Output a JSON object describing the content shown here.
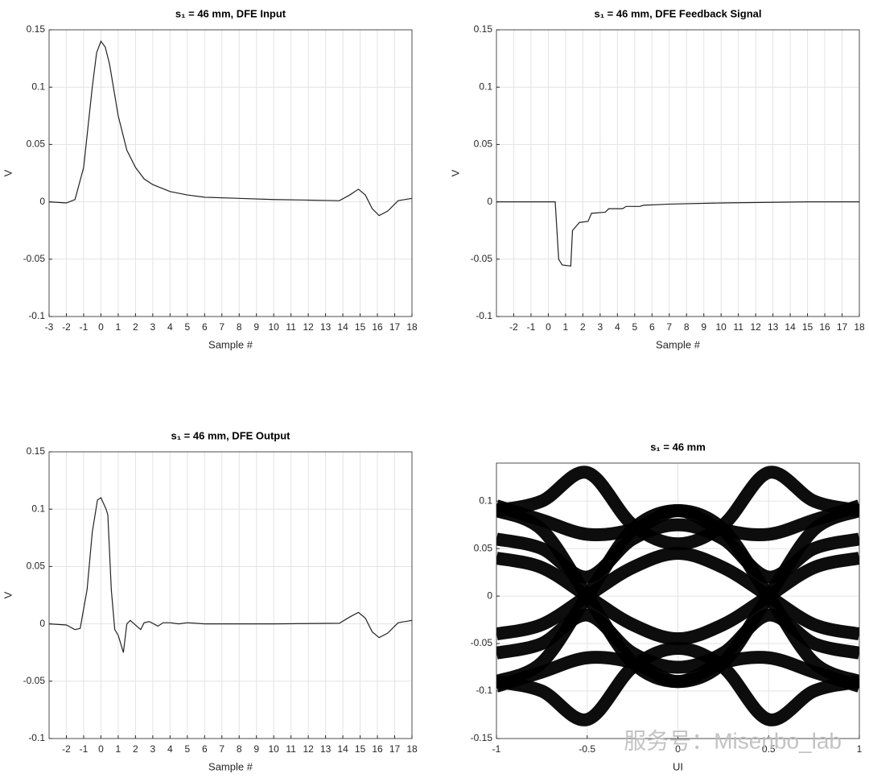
{
  "chart_data": [
    {
      "type": "line",
      "title": "s₁ = 46 mm, DFE Input",
      "xlabel": "Sample #",
      "ylabel": "V",
      "x": [
        -3,
        -2,
        -1.5,
        -1,
        -0.5,
        -0.25,
        0,
        0.25,
        0.5,
        1,
        1.5,
        2,
        2.5,
        3,
        4,
        5,
        6,
        8,
        10,
        12,
        13.8,
        14.4,
        14.9,
        15.3,
        15.7,
        16.1,
        16.6,
        17.2,
        18
      ],
      "series": [
        {
          "color": "#222222",
          "values": [
            0,
            -0.001,
            0.002,
            0.03,
            0.1,
            0.13,
            0.14,
            0.135,
            0.12,
            0.075,
            0.045,
            0.03,
            0.02,
            0.015,
            0.009,
            0.006,
            0.004,
            0.003,
            0.002,
            0.0015,
            0.001,
            0.006,
            0.011,
            0.006,
            -0.006,
            -0.012,
            -0.008,
            0.001,
            0.003
          ]
        }
      ],
      "xlim": [
        -3,
        18
      ],
      "xticks": [
        -3,
        -2,
        -1,
        0,
        1,
        2,
        3,
        4,
        5,
        6,
        7,
        8,
        9,
        10,
        11,
        12,
        13,
        14,
        15,
        16,
        17,
        18
      ],
      "ylim": [
        -0.1,
        0.15
      ],
      "yticks": [
        -0.1,
        -0.05,
        0,
        0.05,
        0.1,
        0.15
      ],
      "grid": true
    },
    {
      "type": "line",
      "title": "s₁ = 46 mm, DFE Feedback Signal",
      "xlabel": "Sample #",
      "ylabel": "V",
      "x": [
        -3,
        0.4,
        0.6,
        0.8,
        1.3,
        1.4,
        1.8,
        2.3,
        2.5,
        3.3,
        3.5,
        4.3,
        4.5,
        5.3,
        5.5,
        7,
        10,
        15,
        18
      ],
      "series": [
        {
          "color": "#222222",
          "values": [
            0,
            0,
            -0.05,
            -0.055,
            -0.056,
            -0.025,
            -0.018,
            -0.017,
            -0.01,
            -0.009,
            -0.006,
            -0.006,
            -0.004,
            -0.004,
            -0.003,
            -0.002,
            -0.001,
            0,
            0
          ]
        }
      ],
      "xlim": [
        -3,
        18
      ],
      "xticks": [
        -2,
        -1,
        0,
        1,
        2,
        3,
        4,
        5,
        6,
        7,
        8,
        9,
        10,
        11,
        12,
        13,
        14,
        15,
        16,
        17,
        18
      ],
      "ylim": [
        -0.1,
        0.15
      ],
      "yticks": [
        -0.1,
        -0.05,
        0,
        0.05,
        0.1,
        0.15
      ],
      "grid": true
    },
    {
      "type": "line",
      "title": "s₁ = 46 mm, DFE Output",
      "xlabel": "Sample #",
      "ylabel": "V",
      "x": [
        -3,
        -2,
        -1.5,
        -1.2,
        -0.8,
        -0.5,
        -0.2,
        0,
        0.3,
        0.4,
        0.6,
        0.8,
        1,
        1.3,
        1.5,
        1.7,
        2,
        2.3,
        2.5,
        2.8,
        3.3,
        3.6,
        4,
        4.5,
        5,
        6,
        8,
        10,
        13.8,
        14.4,
        14.9,
        15.3,
        15.7,
        16.1,
        16.6,
        17.2,
        18
      ],
      "series": [
        {
          "color": "#222222",
          "values": [
            0,
            -0.001,
            -0.005,
            -0.004,
            0.03,
            0.08,
            0.108,
            0.11,
            0.1,
            0.095,
            0.03,
            -0.005,
            -0.01,
            -0.025,
            0,
            0.003,
            -0.001,
            -0.005,
            0.001,
            0.002,
            -0.002,
            0.001,
            0.001,
            0,
            0.001,
            0,
            0,
            0,
            0.0005,
            0.006,
            0.01,
            0.005,
            -0.007,
            -0.012,
            -0.008,
            0.001,
            0.003
          ]
        }
      ],
      "xlim": [
        -3,
        18
      ],
      "xticks": [
        -2,
        -1,
        0,
        1,
        2,
        3,
        4,
        5,
        6,
        7,
        8,
        9,
        10,
        11,
        12,
        13,
        14,
        15,
        16,
        17,
        18
      ],
      "ylim": [
        -0.1,
        0.15
      ],
      "yticks": [
        -0.1,
        -0.05,
        0,
        0.05,
        0.1,
        0.15
      ],
      "grid": true
    },
    {
      "type": "eye",
      "title": "s₁ = 46 mm",
      "xlabel": "UI",
      "x": [
        -1,
        -0.75,
        -0.5,
        -0.25,
        0,
        0.25,
        0.5,
        0.75,
        1
      ],
      "series": [
        {
          "color": "#000000",
          "values": [
            0.095,
            0.08,
            0.065,
            0.07,
            0.09,
            0.07,
            0.065,
            0.08,
            0.095
          ]
        },
        {
          "color": "#000000",
          "values": [
            -0.095,
            -0.08,
            -0.065,
            -0.07,
            -0.09,
            -0.07,
            -0.065,
            -0.08,
            -0.095
          ]
        },
        {
          "color": "#000000",
          "values": [
            0.09,
            0.1,
            0.13,
            0.075,
            0.055,
            0.075,
            0.13,
            0.1,
            0.09
          ]
        },
        {
          "color": "#000000",
          "values": [
            -0.09,
            -0.1,
            -0.13,
            -0.075,
            -0.055,
            -0.075,
            -0.13,
            -0.1,
            -0.09
          ]
        },
        {
          "color": "#000000",
          "values": [
            0.09,
            0.07,
            0,
            -0.07,
            -0.09,
            -0.07,
            0,
            0.07,
            0.09
          ]
        },
        {
          "color": "#000000",
          "values": [
            -0.09,
            -0.07,
            0,
            0.07,
            0.09,
            0.07,
            0,
            -0.07,
            -0.09
          ]
        },
        {
          "color": "#000000",
          "values": [
            0.04,
            0.03,
            0,
            -0.03,
            -0.045,
            -0.03,
            0,
            0.03,
            0.04
          ]
        },
        {
          "color": "#000000",
          "values": [
            -0.04,
            -0.03,
            0,
            0.03,
            0.045,
            0.03,
            0,
            -0.03,
            -0.04
          ]
        },
        {
          "color": "#000000",
          "values": [
            0.06,
            0.05,
            0.02,
            0.06,
            0.075,
            0.06,
            0.02,
            0.05,
            0.06
          ]
        },
        {
          "color": "#000000",
          "values": [
            -0.06,
            -0.05,
            -0.02,
            -0.06,
            -0.075,
            -0.06,
            -0.02,
            -0.05,
            -0.06
          ]
        }
      ],
      "xlim": [
        -1,
        1
      ],
      "xticks": [
        -1,
        -0.5,
        0,
        0.5,
        1
      ],
      "ylim": [
        -0.15,
        0.14
      ],
      "yticks": [
        -0.15,
        -0.1,
        -0.05,
        0,
        0.05,
        0.1
      ],
      "grid": true,
      "watermark": "服务号：Misenbo_lab"
    }
  ]
}
